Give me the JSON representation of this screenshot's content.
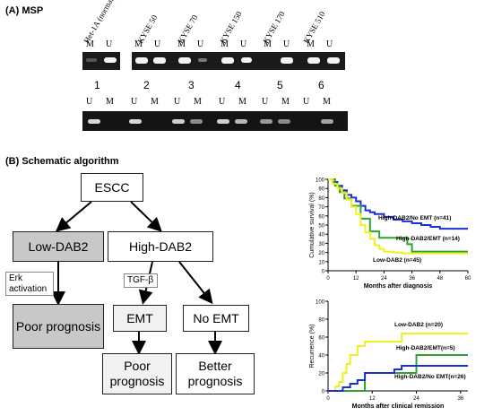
{
  "msp": {
    "title": "(A) MSP",
    "lanes": [
      "Het-1A (normal)",
      "KYSE 50",
      "KYSE 70",
      "KYSE 150",
      "KYSE 170",
      "KYSE 510"
    ],
    "mu_label_m": "M",
    "mu_label_u": "U",
    "patients": [
      "1",
      "2",
      "3",
      "4",
      "5",
      "6"
    ]
  },
  "schematic": {
    "title": "(B) Schematic algorithm",
    "root": "ESCC",
    "low": "Low-DAB2",
    "high": "High-DAB2",
    "erk": "Erk activation",
    "tgf": "TGF-β",
    "poor1": "Poor prognosis",
    "emt": "EMT",
    "no_emt": "No EMT",
    "poor2": "Poor prognosis",
    "better": "Better prognosis"
  },
  "chart_data": [
    {
      "type": "line",
      "ylabel": "Cumulative survival (%)",
      "xlabel": "Months after diagnosis",
      "xlim": [
        0,
        60
      ],
      "ylim": [
        0,
        100
      ],
      "xticks": [
        0,
        12,
        24,
        36,
        48,
        60
      ],
      "yticks": [
        0,
        10,
        20,
        30,
        40,
        50,
        60,
        70,
        80,
        90,
        100
      ],
      "colors": {
        "high_no_emt": "#1a2fd6",
        "high_emt": "#2ea32e",
        "low": "#f0f020"
      },
      "series": [
        {
          "name": "High-DAB2/No EMT (n=41)",
          "x": [
            0,
            2,
            4,
            6,
            8,
            10,
            12,
            14,
            16,
            18,
            20,
            24,
            28,
            32,
            36,
            40,
            44,
            48,
            52,
            56,
            60
          ],
          "y": [
            100,
            97,
            93,
            88,
            83,
            80,
            76,
            71,
            66,
            64,
            62,
            59,
            56,
            54,
            52,
            50,
            48,
            46,
            46,
            46,
            46
          ]
        },
        {
          "name": "High-DAB2/EMT (n=14)",
          "x": [
            0,
            3,
            5,
            7,
            10,
            14,
            18,
            22,
            30,
            34,
            36,
            40,
            60
          ],
          "y": [
            100,
            93,
            86,
            79,
            71,
            57,
            43,
            36,
            36,
            29,
            21,
            21,
            21
          ]
        },
        {
          "name": "Low-DAB2 (n=45)",
          "x": [
            0,
            2,
            4,
            6,
            8,
            10,
            12,
            14,
            16,
            18,
            20,
            22,
            24,
            28,
            32,
            36,
            40,
            44,
            48,
            52,
            56,
            60
          ],
          "y": [
            100,
            95,
            90,
            85,
            78,
            70,
            62,
            50,
            42,
            35,
            28,
            24,
            21,
            20,
            19,
            19,
            19,
            19,
            19,
            19,
            19,
            19
          ]
        }
      ]
    },
    {
      "type": "line",
      "ylabel": "Recurrence (%)",
      "xlabel": "Months after clinical remission",
      "xlim": [
        0,
        38
      ],
      "ylim": [
        0,
        100
      ],
      "xticks": [
        0,
        12,
        24,
        36
      ],
      "yticks": [
        0,
        20,
        40,
        60,
        80,
        100
      ],
      "series": [
        {
          "name": "Low-DAB2 (n=20)",
          "x": [
            0,
            2,
            3,
            4,
            5,
            6,
            8,
            10,
            18,
            20,
            38
          ],
          "y": [
            0,
            5,
            10,
            20,
            30,
            40,
            50,
            55,
            55,
            64,
            64
          ]
        },
        {
          "name": "High-DAB2/EMT(n=5)",
          "x": [
            0,
            8,
            10,
            20,
            24,
            38
          ],
          "y": [
            0,
            0,
            20,
            20,
            40,
            40
          ]
        },
        {
          "name": "High-DAB2/No EMT(n=26)",
          "x": [
            0,
            4,
            6,
            8,
            10,
            18,
            20,
            38
          ],
          "y": [
            0,
            4,
            8,
            12,
            20,
            24,
            28,
            28
          ]
        }
      ]
    }
  ]
}
